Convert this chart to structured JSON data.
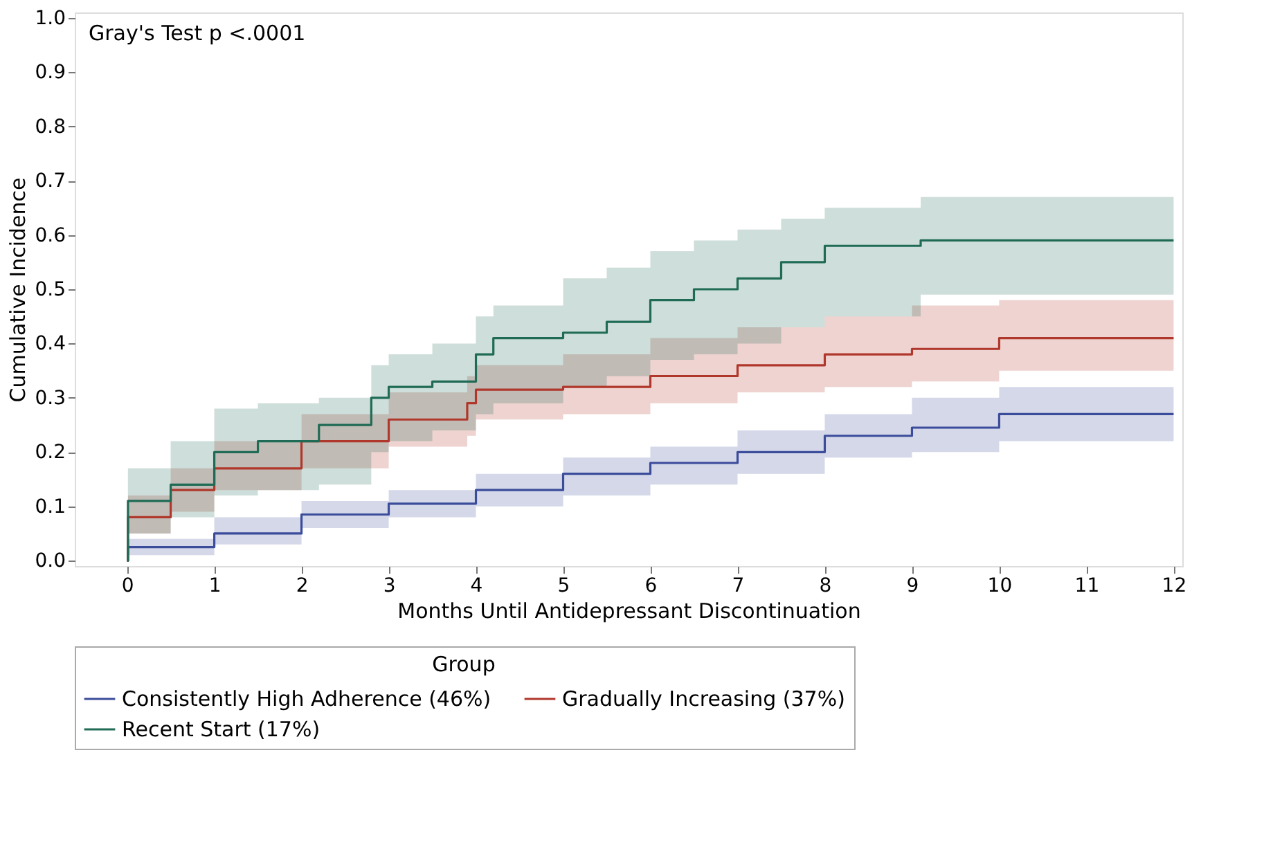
{
  "chart_data": {
    "type": "step",
    "xlabel": "Months Until Antidepressant Discontinuation",
    "ylabel": "Cumulative Incidence",
    "legend_title": "Group",
    "annotations": [
      "Gray's Test p <.0001"
    ],
    "xlim": [
      -0.6,
      12.1
    ],
    "xticks": [
      0,
      1,
      2,
      3,
      4,
      5,
      6,
      7,
      8,
      9,
      10,
      11,
      12
    ],
    "ylim": [
      -0.01,
      1.01
    ],
    "yticks": [
      {
        "value": 0,
        "label": "0.0"
      },
      {
        "value": 0.1,
        "label": "0.1"
      },
      {
        "value": 0.2,
        "label": "0.2"
      },
      {
        "value": 0.3,
        "label": "0.3"
      },
      {
        "value": 0.4,
        "label": "0.4"
      },
      {
        "value": 0.5,
        "label": "0.5"
      },
      {
        "value": 0.6,
        "label": "0.6"
      },
      {
        "value": 0.7,
        "label": "0.7"
      },
      {
        "value": 0.8,
        "label": "0.8"
      },
      {
        "value": 0.9,
        "label": "0.9"
      },
      {
        "value": 1,
        "label": "1.0"
      }
    ],
    "grid": false,
    "legend": "bottom",
    "line_style": "solid",
    "marker": "none",
    "series": [
      {
        "name": "Consistently High Adherence (46%)",
        "color": "#3b4c9b",
        "x": [
          0,
          0.01,
          1,
          2,
          3,
          4,
          5,
          6,
          7,
          8,
          9,
          10,
          12
        ],
        "values": [
          0,
          0.025,
          0.05,
          0.085,
          0.105,
          0.13,
          0.16,
          0.18,
          0.2,
          0.23,
          0.245,
          0.27,
          0.27
        ],
        "lower": [
          0,
          0.01,
          0.03,
          0.06,
          0.08,
          0.1,
          0.12,
          0.14,
          0.16,
          0.19,
          0.2,
          0.22,
          0.22
        ],
        "upper": [
          0,
          0.04,
          0.08,
          0.11,
          0.13,
          0.16,
          0.19,
          0.21,
          0.24,
          0.27,
          0.3,
          0.32,
          0.32
        ]
      },
      {
        "name": "Gradually Increasing (37%)",
        "color": "#b0372b",
        "x": [
          0,
          0.01,
          0.5,
          1,
          2,
          3,
          3.9,
          4,
          5,
          6,
          7,
          8,
          9,
          10,
          12
        ],
        "values": [
          0,
          0.08,
          0.13,
          0.17,
          0.22,
          0.26,
          0.29,
          0.315,
          0.32,
          0.34,
          0.36,
          0.38,
          0.39,
          0.41,
          0.41
        ],
        "lower": [
          0,
          0.05,
          0.09,
          0.13,
          0.17,
          0.21,
          0.23,
          0.26,
          0.27,
          0.29,
          0.31,
          0.32,
          0.33,
          0.35,
          0.35
        ],
        "upper": [
          0,
          0.12,
          0.17,
          0.22,
          0.27,
          0.31,
          0.34,
          0.36,
          0.38,
          0.41,
          0.43,
          0.45,
          0.47,
          0.48,
          0.48
        ]
      },
      {
        "name": "Recent Start (17%)",
        "color": "#1f6b55",
        "x": [
          0,
          0.01,
          0.5,
          1,
          1.5,
          2.2,
          2.8,
          3,
          3.5,
          4,
          4.2,
          5,
          5.5,
          6,
          6.5,
          7,
          7.5,
          8,
          9.1,
          12
        ],
        "values": [
          0,
          0.11,
          0.14,
          0.2,
          0.22,
          0.25,
          0.3,
          0.32,
          0.33,
          0.38,
          0.41,
          0.42,
          0.44,
          0.48,
          0.5,
          0.52,
          0.55,
          0.58,
          0.59,
          0.59
        ],
        "lower": [
          0,
          0.05,
          0.08,
          0.12,
          0.13,
          0.14,
          0.2,
          0.22,
          0.24,
          0.27,
          0.29,
          0.32,
          0.34,
          0.37,
          0.38,
          0.4,
          0.43,
          0.45,
          0.49,
          0.49
        ],
        "upper": [
          0,
          0.17,
          0.22,
          0.28,
          0.29,
          0.3,
          0.36,
          0.38,
          0.4,
          0.45,
          0.47,
          0.52,
          0.54,
          0.57,
          0.59,
          0.61,
          0.63,
          0.65,
          0.67,
          0.67
        ]
      }
    ]
  }
}
